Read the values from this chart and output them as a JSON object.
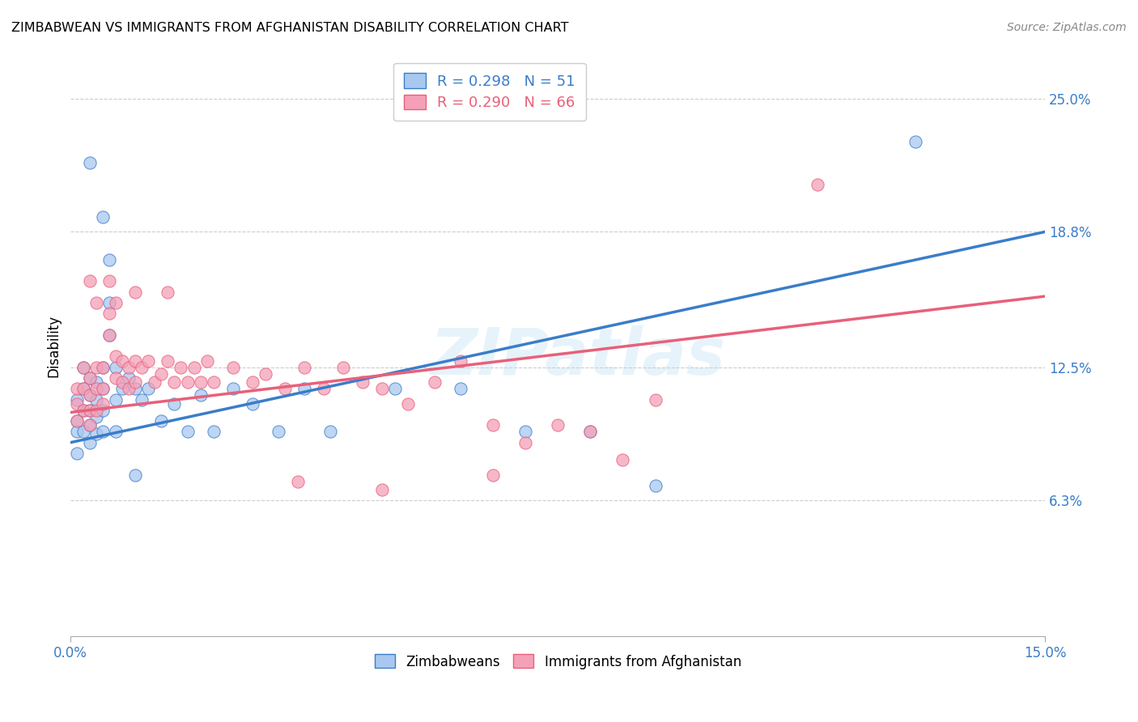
{
  "title": "ZIMBABWEAN VS IMMIGRANTS FROM AFGHANISTAN DISABILITY CORRELATION CHART",
  "source": "Source: ZipAtlas.com",
  "ylabel": "Disability",
  "xlabel": "",
  "xlim": [
    0.0,
    0.15
  ],
  "ylim": [
    0.0,
    0.27
  ],
  "xticks": [
    0.0,
    0.15
  ],
  "xtick_labels": [
    "0.0%",
    "15.0%"
  ],
  "ytick_positions": [
    0.063,
    0.125,
    0.188,
    0.25
  ],
  "ytick_labels": [
    "6.3%",
    "12.5%",
    "18.8%",
    "25.0%"
  ],
  "blue_color": "#A8C8F0",
  "pink_color": "#F4A0B8",
  "blue_line_color": "#3A7DC9",
  "pink_line_color": "#E8607A",
  "legend_text_blue": "R = 0.298   N = 51",
  "legend_text_pink": "R = 0.290   N = 66",
  "watermark": "ZIPatlas",
  "blue_line_x0": 0.0,
  "blue_line_y0": 0.09,
  "blue_line_x1": 0.15,
  "blue_line_y1": 0.188,
  "pink_line_x0": 0.0,
  "pink_line_x1": 0.15,
  "pink_line_y0": 0.104,
  "pink_line_y1": 0.158,
  "blue_x": [
    0.001,
    0.001,
    0.001,
    0.001,
    0.002,
    0.002,
    0.002,
    0.002,
    0.003,
    0.003,
    0.003,
    0.003,
    0.003,
    0.004,
    0.004,
    0.004,
    0.004,
    0.005,
    0.005,
    0.005,
    0.005,
    0.006,
    0.006,
    0.006,
    0.007,
    0.007,
    0.007,
    0.008,
    0.009,
    0.01,
    0.011,
    0.012,
    0.014,
    0.016,
    0.018,
    0.02,
    0.022,
    0.025,
    0.028,
    0.032,
    0.036,
    0.04,
    0.05,
    0.06,
    0.07,
    0.08,
    0.09,
    0.01,
    0.003,
    0.005,
    0.13
  ],
  "blue_y": [
    0.11,
    0.1,
    0.095,
    0.085,
    0.125,
    0.115,
    0.105,
    0.095,
    0.12,
    0.112,
    0.105,
    0.098,
    0.09,
    0.118,
    0.11,
    0.102,
    0.094,
    0.125,
    0.115,
    0.105,
    0.095,
    0.155,
    0.14,
    0.175,
    0.125,
    0.11,
    0.095,
    0.115,
    0.12,
    0.115,
    0.11,
    0.115,
    0.1,
    0.108,
    0.095,
    0.112,
    0.095,
    0.115,
    0.108,
    0.095,
    0.115,
    0.095,
    0.115,
    0.115,
    0.095,
    0.095,
    0.07,
    0.075,
    0.22,
    0.195,
    0.23
  ],
  "pink_x": [
    0.001,
    0.001,
    0.001,
    0.002,
    0.002,
    0.002,
    0.003,
    0.003,
    0.003,
    0.003,
    0.004,
    0.004,
    0.004,
    0.005,
    0.005,
    0.005,
    0.006,
    0.006,
    0.007,
    0.007,
    0.008,
    0.008,
    0.009,
    0.009,
    0.01,
    0.01,
    0.011,
    0.012,
    0.013,
    0.014,
    0.015,
    0.016,
    0.017,
    0.018,
    0.019,
    0.02,
    0.021,
    0.022,
    0.025,
    0.028,
    0.03,
    0.033,
    0.036,
    0.039,
    0.042,
    0.045,
    0.048,
    0.052,
    0.056,
    0.06,
    0.065,
    0.07,
    0.08,
    0.09,
    0.01,
    0.015,
    0.003,
    0.004,
    0.006,
    0.007,
    0.075,
    0.085,
    0.115,
    0.065,
    0.048,
    0.035
  ],
  "pink_y": [
    0.115,
    0.108,
    0.1,
    0.125,
    0.115,
    0.105,
    0.12,
    0.112,
    0.105,
    0.098,
    0.125,
    0.115,
    0.105,
    0.125,
    0.115,
    0.108,
    0.15,
    0.14,
    0.13,
    0.12,
    0.128,
    0.118,
    0.125,
    0.115,
    0.128,
    0.118,
    0.125,
    0.128,
    0.118,
    0.122,
    0.128,
    0.118,
    0.125,
    0.118,
    0.125,
    0.118,
    0.128,
    0.118,
    0.125,
    0.118,
    0.122,
    0.115,
    0.125,
    0.115,
    0.125,
    0.118,
    0.115,
    0.108,
    0.118,
    0.128,
    0.098,
    0.09,
    0.095,
    0.11,
    0.16,
    0.16,
    0.165,
    0.155,
    0.165,
    0.155,
    0.098,
    0.082,
    0.21,
    0.075,
    0.068,
    0.072
  ]
}
